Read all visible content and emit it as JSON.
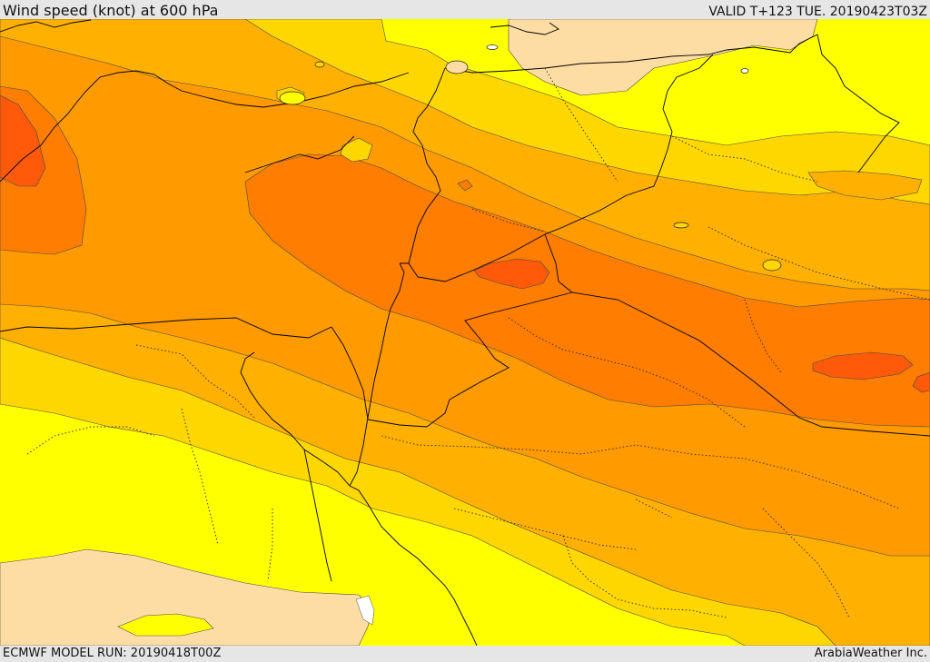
{
  "header": {
    "title": "Wind speed (knot) at 600 hPa",
    "valid": "VALID T+123 TUE. 20190423T03Z"
  },
  "footer": {
    "model_run": "ECMWF MODEL RUN: 20190418T00Z",
    "credit": "ArabiaWeather Inc."
  },
  "palette": {
    "band_10_20": "#fedda5",
    "band_20_30": "#ffff00",
    "band_30_40": "#ffd700",
    "band_40_50": "#ffb000",
    "band_50_60": "#ff9a00",
    "band_60_70": "#ff7d00",
    "band_70_80": "#ff5a0a",
    "water": "#ffffff",
    "border": "#000000",
    "contour": "#4a4a4a"
  }
}
